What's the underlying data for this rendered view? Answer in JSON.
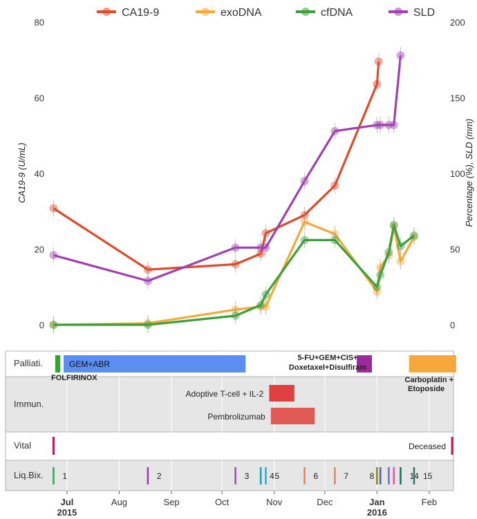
{
  "chart_data": {
    "type": "line",
    "legend": {
      "placement": "top",
      "items": [
        {
          "name": "CA19-9",
          "color": "#de4a2a"
        },
        {
          "name": "exoDNA",
          "color": "#f7a83a"
        },
        {
          "name": "cfDNA",
          "color": "#3aa03a"
        },
        {
          "name": "SLD",
          "color": "#a040b0"
        }
      ]
    },
    "y_left": {
      "label": "CA19-9 (U/mL)",
      "range": [
        0,
        80
      ],
      "ticks": [
        "0",
        "20",
        "40",
        "60",
        "80"
      ]
    },
    "y_right": {
      "label": "Percentage (%), SLD (mm)",
      "range": [
        0,
        200
      ],
      "ticks": [
        "0",
        "50",
        "100",
        "150",
        "200"
      ]
    },
    "x_axis": {
      "range": [
        "2015-06-22",
        "2016-02-15"
      ],
      "ticks": [
        {
          "date": "2015-07-01",
          "label": "Jul",
          "year": "2015"
        },
        {
          "date": "2015-08-01",
          "label": "Aug",
          "year": ""
        },
        {
          "date": "2015-09-01",
          "label": "Sep",
          "year": ""
        },
        {
          "date": "2015-10-01",
          "label": "Oct",
          "year": ""
        },
        {
          "date": "2015-11-01",
          "label": "Nov",
          "year": ""
        },
        {
          "date": "2015-12-01",
          "label": "Dec",
          "year": ""
        },
        {
          "date": "2016-01-01",
          "label": "Jan",
          "year": "2016"
        },
        {
          "date": "2016-02-01",
          "label": "Feb",
          "year": ""
        }
      ]
    },
    "series": [
      {
        "name": "CA19-9",
        "axis": "left",
        "color": "#de4a2a",
        "x": [
          "2015-06-23",
          "2015-08-18",
          "2015-10-09",
          "2015-10-24",
          "2015-10-27",
          "2015-11-19",
          "2015-12-07",
          "2016-01-01",
          "2016-01-02"
        ],
        "y": [
          30.8,
          14.6,
          16.0,
          18.8,
          24.2,
          29.0,
          36.8,
          63.6,
          69.6
        ]
      },
      {
        "name": "exoDNA",
        "axis": "right",
        "color": "#f7a83a",
        "x": [
          "2015-06-23",
          "2015-08-18",
          "2015-10-09",
          "2015-10-24",
          "2015-10-27",
          "2015-11-19",
          "2015-12-07",
          "2016-01-01",
          "2016-01-03",
          "2016-01-08",
          "2016-01-11",
          "2016-01-15",
          "2016-01-23"
        ],
        "y": [
          0,
          1,
          10,
          12,
          12,
          68,
          60,
          22,
          38,
          46,
          65,
          42,
          58
        ]
      },
      {
        "name": "cfDNA",
        "axis": "right",
        "color": "#3aa03a",
        "x": [
          "2015-06-23",
          "2015-08-18",
          "2015-10-09",
          "2015-10-24",
          "2015-10-27",
          "2015-11-19",
          "2015-12-07",
          "2016-01-01",
          "2016-01-03",
          "2016-01-08",
          "2016-01-11",
          "2016-01-15",
          "2016-01-23"
        ],
        "y": [
          0,
          0,
          6,
          13,
          20,
          56,
          56,
          25,
          33,
          48,
          66,
          52,
          59
        ]
      },
      {
        "name": "SLD",
        "axis": "right",
        "color": "#a040b0",
        "x": [
          "2015-06-23",
          "2015-08-18",
          "2015-10-09",
          "2015-10-24",
          "2015-10-27",
          "2015-11-19",
          "2015-12-07",
          "2016-01-01",
          "2016-01-03",
          "2016-01-08",
          "2016-01-11",
          "2016-01-15"
        ],
        "y": [
          46,
          29,
          51,
          51,
          51,
          95,
          128,
          132,
          132,
          132,
          132,
          178
        ]
      }
    ]
  },
  "timeline": {
    "rows": [
      {
        "label": "Palliati.",
        "shaded": false
      },
      {
        "label": "Immun.",
        "shaded": true
      },
      {
        "label": "Vital",
        "shaded": false
      },
      {
        "label": "Liq.Bix.",
        "shaded": true
      }
    ],
    "palliative": [
      {
        "label": "FOLFIRINOX",
        "start": "2015-06-24",
        "end": "2015-06-27",
        "color": "#3aa03a"
      },
      {
        "label": "GEM+ABR",
        "start": "2015-06-29",
        "end": "2015-10-15",
        "color": "#5b8ef0"
      },
      {
        "label": "5-FU+GEM+CIS+",
        "label2": "Doxetaxel+Disulfiram",
        "start": "2015-12-20",
        "end": "2015-12-29",
        "color": "#9b2a9b"
      },
      {
        "label": "Carboplatin +",
        "label2": "Etoposide",
        "start": "2016-01-20",
        "end": "2016-02-17",
        "color": "#f7a83a"
      }
    ],
    "immunotherapy": [
      {
        "label": "Adoptive T-cell + IL-2",
        "start": "2015-10-29",
        "end": "2015-11-13",
        "color": "#e04040"
      },
      {
        "label": "Pembrolizumab",
        "start": "2015-10-30",
        "end": "2015-11-25",
        "color": "#e05a55"
      }
    ],
    "vital": [
      {
        "label": "",
        "date": "2015-06-23",
        "color": "#c2185b"
      },
      {
        "label": "Deceased",
        "date": "2016-02-16",
        "color": "#c2185b"
      }
    ],
    "liquid_biopsies": [
      {
        "label": "1",
        "date": "2015-06-23",
        "color": "#3aa05a"
      },
      {
        "label": "2",
        "date": "2015-08-18",
        "color": "#9b40b0"
      },
      {
        "label": "3",
        "date": "2015-10-09",
        "color": "#a050c0"
      },
      {
        "label": "4",
        "date": "2015-10-24",
        "color": "#20a0c0"
      },
      {
        "label": "5",
        "date": "2015-10-27",
        "color": "#30b0d0"
      },
      {
        "label": "6",
        "date": "2015-11-19",
        "color": "#f08050"
      },
      {
        "label": "7",
        "date": "2015-12-07",
        "color": "#f08060"
      },
      {
        "label": "8",
        "date": "2016-01-01",
        "color": "#8a8a20"
      },
      {
        "label": "",
        "date": "2016-01-03",
        "color": "#5060c0"
      },
      {
        "label": "",
        "date": "2016-01-08",
        "color": "#7070d0"
      },
      {
        "label": "",
        "date": "2016-01-11",
        "color": "#e060a0"
      },
      {
        "label": "14",
        "date": "2016-01-15",
        "color": "#207060"
      },
      {
        "label": "15",
        "date": "2016-01-23",
        "color": "#307a70"
      }
    ]
  }
}
